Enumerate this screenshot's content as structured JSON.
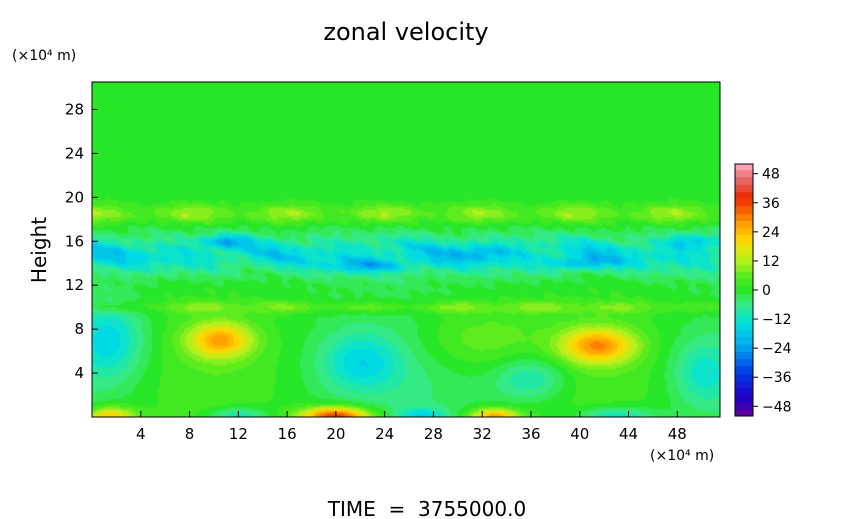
{
  "chart_data": {
    "type": "heatmap",
    "title": "zonal velocity",
    "ylabel": "Height",
    "xunit": "(×10⁴ m)",
    "yunit": "(×10⁴ m)",
    "xlim": [
      0,
      51.5
    ],
    "ylim": [
      0,
      30.5
    ],
    "xticks": [
      "4",
      "8",
      "12",
      "16",
      "20",
      "24",
      "28",
      "32",
      "36",
      "40",
      "44",
      "48"
    ],
    "yticks": [
      "4",
      "8",
      "12",
      "16",
      "20",
      "24",
      "28"
    ],
    "colorbar": {
      "range": [
        -52,
        52
      ],
      "tick_values": [
        48,
        36,
        24,
        12,
        0,
        -12,
        -24,
        -36,
        -48
      ],
      "tick_labels": [
        "48",
        "36",
        "24",
        "12",
        "0",
        "−12",
        "−24",
        "−36",
        "−48"
      ]
    },
    "features": [
      {
        "x": 10.5,
        "y": 7.0,
        "value": 24
      },
      {
        "x": 41.5,
        "y": 6.5,
        "value": 26
      },
      {
        "x": 20.0,
        "y": 0.5,
        "value": 40
      },
      {
        "x": 33.0,
        "y": 0.6,
        "value": 28
      },
      {
        "x": 1.5,
        "y": 0.6,
        "value": 24
      },
      {
        "x": 11.0,
        "y": 16.0,
        "value": -30
      },
      {
        "x": 23.0,
        "y": 14.0,
        "value": -26
      },
      {
        "x": 40.0,
        "y": 14.0,
        "value": -24
      },
      {
        "x": 49.0,
        "y": 16.0,
        "value": -22
      }
    ],
    "footer": "TIME  =  3755000.0"
  }
}
